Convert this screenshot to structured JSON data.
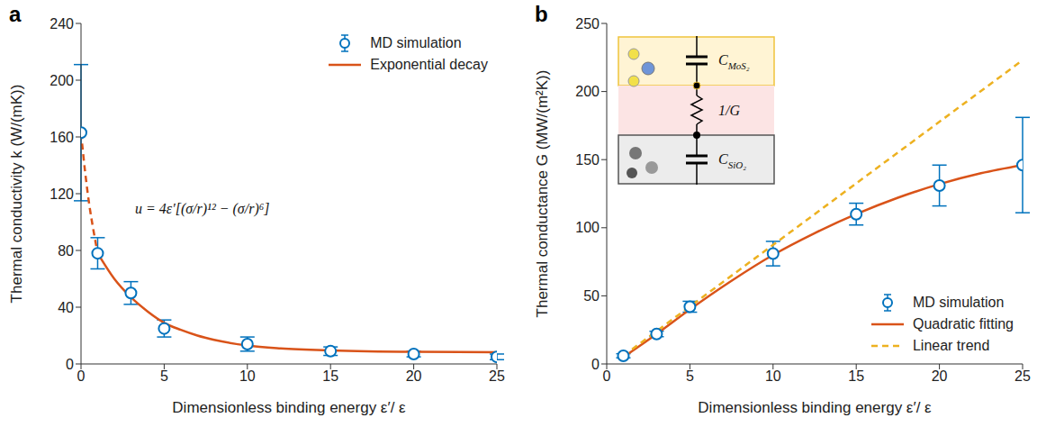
{
  "chart_data": [
    {
      "type": "scatter",
      "title": "a",
      "x_label": "Dimensionless binding energy ε′/ ε",
      "y_label": "Thermal conductivity k (W/(mK))",
      "xlim": [
        0,
        25
      ],
      "xticks": [
        0,
        5,
        10,
        15,
        20,
        25
      ],
      "ylim": [
        0,
        240
      ],
      "yticks": [
        0,
        40,
        80,
        120,
        160,
        200,
        240
      ],
      "grid": false,
      "legend": "upper right",
      "annotations": [
        {
          "text": "u = 4ε′[(σ/r)¹² − (σ/r)⁶]"
        }
      ],
      "series": [
        {
          "name": "MD simulation",
          "type": "scatter",
          "marker": "open circle",
          "color": "#0072BD",
          "x": [
            0,
            1,
            3,
            5,
            10,
            15,
            20,
            25
          ],
          "values": [
            163,
            78,
            50,
            25,
            14,
            9,
            7,
            5
          ],
          "errors": [
            48,
            11,
            8,
            6,
            5,
            3,
            2,
            2
          ]
        },
        {
          "name": "Exponential decay",
          "type": "line",
          "line_style": "dashed",
          "color": "#D95319",
          "x": [
            0,
            0.25,
            0.5,
            0.75,
            1
          ],
          "values": [
            163,
            135,
            112,
            94,
            78
          ]
        },
        {
          "name": "Exponential decay",
          "type": "line",
          "line_style": "solid",
          "color": "#D95319",
          "x": [
            1,
            2,
            3,
            4,
            5,
            6,
            7,
            8,
            10,
            12,
            15,
            20,
            25
          ],
          "values": [
            78,
            60,
            47,
            37,
            29,
            24,
            20,
            17,
            13,
            11,
            9.5,
            8.5,
            8.3
          ]
        }
      ]
    },
    {
      "type": "scatter",
      "title": "b",
      "x_label": "Dimensionless binding energy ε′/ ε",
      "y_label": "Thermal conductance G (MW/(m²K))",
      "xlim": [
        0,
        25
      ],
      "xticks": [
        0,
        5,
        10,
        15,
        20,
        25
      ],
      "ylim": [
        0,
        250
      ],
      "yticks": [
        0,
        50,
        100,
        150,
        200,
        250
      ],
      "grid": false,
      "legend": "lower right",
      "annotations": [
        {
          "text": "C",
          "subscript": "MoS₂"
        },
        {
          "text": "1/G"
        },
        {
          "text": "C",
          "subscript": "SiO₂"
        }
      ],
      "series": [
        {
          "name": "MD simulation",
          "type": "scatter",
          "marker": "open circle",
          "color": "#0072BD",
          "x": [
            1,
            3,
            5,
            10,
            15,
            20,
            25
          ],
          "values": [
            6,
            22,
            42,
            81,
            110,
            131,
            146
          ],
          "errors": [
            1.5,
            2,
            4,
            9,
            8,
            15,
            35
          ]
        },
        {
          "name": "Quadratic fitting",
          "type": "line",
          "line_style": "solid",
          "color": "#D95319",
          "x": [
            1,
            3,
            5,
            7.5,
            10,
            12.5,
            15,
            17.5,
            20,
            22.5,
            25
          ],
          "values": [
            5,
            22,
            40,
            61,
            80,
            96,
            110,
            122,
            132,
            140,
            146
          ]
        },
        {
          "name": "Linear trend",
          "type": "line",
          "line_style": "dashed",
          "color": "#EDB120",
          "x": [
            1,
            25
          ],
          "values": [
            6,
            223
          ]
        }
      ]
    }
  ]
}
